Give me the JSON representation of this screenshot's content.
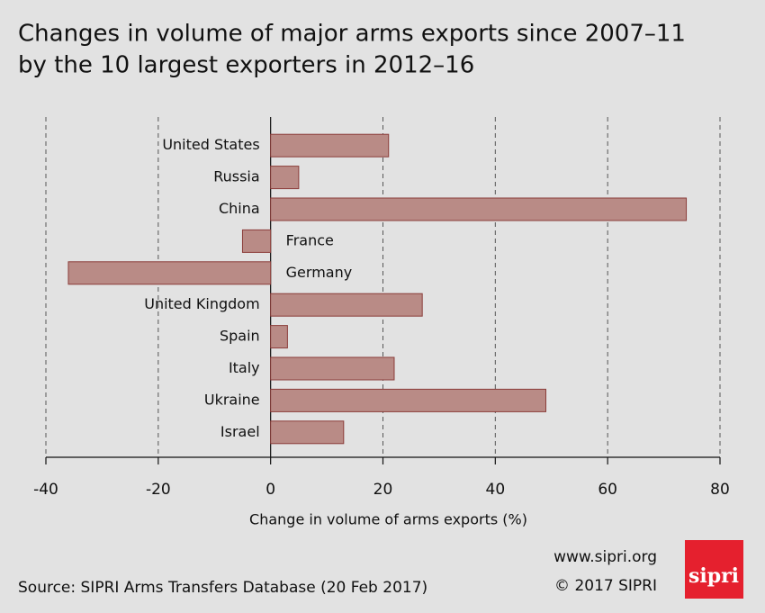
{
  "chart_data": {
    "type": "bar",
    "orientation": "horizontal",
    "title": [
      "Changes in volume of major arms exports since 2007–11",
      "by the 10 largest exporters in 2012–16"
    ],
    "categories": [
      "United States",
      "Russia",
      "China",
      "France",
      "Germany",
      "United Kingdom",
      "Spain",
      "Italy",
      "Ukraine",
      "Israel"
    ],
    "values": [
      21,
      5,
      74,
      -5,
      -36,
      27,
      3,
      22,
      49,
      13
    ],
    "color": "#b98b86",
    "edge_color": "#8b3d3a",
    "xlim": [
      -40,
      80
    ],
    "xticks": [
      -40,
      -20,
      0,
      20,
      40,
      60,
      80
    ],
    "xlabel": "Change in volume of arms exports (%)",
    "grid": true
  },
  "footer": {
    "source": "Source: SIPRI Arms Transfers Database (20 Feb 2017)",
    "url": "www.sipri.org",
    "copyright": "© 2017 SIPRI",
    "logo": "sipri"
  }
}
